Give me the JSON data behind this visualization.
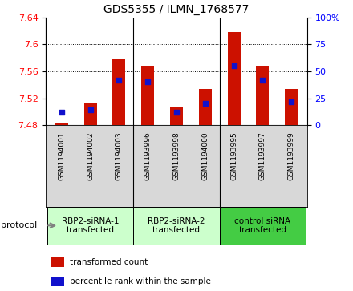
{
  "title": "GDS5355 / ILMN_1768577",
  "samples": [
    "GSM1194001",
    "GSM1194002",
    "GSM1194003",
    "GSM1193996",
    "GSM1193998",
    "GSM1194000",
    "GSM1193995",
    "GSM1193997",
    "GSM1193999"
  ],
  "transformed_counts": [
    7.484,
    7.513,
    7.578,
    7.568,
    7.506,
    7.534,
    7.618,
    7.568,
    7.534
  ],
  "percentile_ranks": [
    12,
    14,
    42,
    40,
    12,
    20,
    55,
    42,
    22
  ],
  "ylim_left": [
    7.48,
    7.64
  ],
  "ylim_right": [
    0,
    100
  ],
  "yticks_left": [
    7.48,
    7.52,
    7.56,
    7.6,
    7.64
  ],
  "yticks_right": [
    0,
    25,
    50,
    75,
    100
  ],
  "bar_color": "#cc1100",
  "dot_color": "#1111cc",
  "groups": [
    {
      "label": "RBP2-siRNA-1\ntransfected",
      "start": 0,
      "end": 3,
      "color": "#ccffcc"
    },
    {
      "label": "RBP2-siRNA-2\ntransfected",
      "start": 3,
      "end": 6,
      "color": "#ccffcc"
    },
    {
      "label": "control siRNA\ntransfected",
      "start": 6,
      "end": 9,
      "color": "#44cc44"
    }
  ],
  "legend_items": [
    {
      "color": "#cc1100",
      "label": "transformed count"
    },
    {
      "color": "#1111cc",
      "label": "percentile rank within the sample"
    }
  ],
  "protocol_label": "protocol",
  "sample_bg_color": "#d8d8d8",
  "bar_width": 0.45
}
